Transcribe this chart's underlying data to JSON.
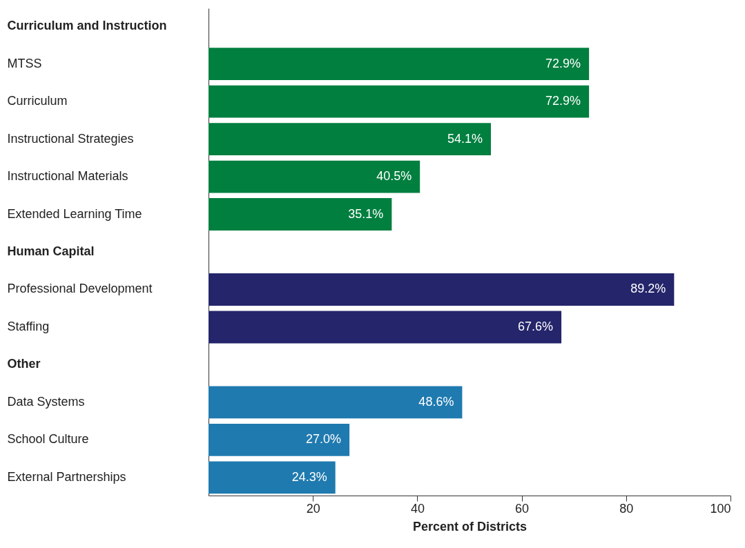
{
  "chart_data": {
    "type": "bar",
    "orientation": "horizontal",
    "categories": [
      "Curriculum and Instruction",
      "MTSS",
      "Curriculum",
      "Instructional Strategies",
      "Instructional Materials",
      "Extended Learning Time",
      "Human Capital",
      "Professional Development",
      "Staffing",
      "Other",
      "Data Systems",
      "School Culture",
      "External Partnerships"
    ],
    "values": [
      null,
      72.9,
      72.9,
      54.1,
      40.5,
      35.1,
      null,
      89.2,
      67.6,
      null,
      48.6,
      27.0,
      24.3
    ],
    "colors": [
      null,
      "#007f3f",
      "#007f3f",
      "#007f3f",
      "#007f3f",
      "#007f3f",
      null,
      "#25256b",
      "#25256b",
      null,
      "#1f7aaf",
      "#1f7aaf",
      "#1f7aaf"
    ],
    "value_labels": [
      null,
      "72.9%",
      "72.9%",
      "54.1%",
      "40.5%",
      "35.1%",
      null,
      "89.2%",
      "67.6%",
      null,
      "48.6%",
      "27.0%",
      "24.3%"
    ],
    "xlim": [
      0,
      100
    ],
    "xticks": [
      20,
      40,
      60,
      80,
      100
    ],
    "xlabel": "Percent of Districts",
    "grid": false
  }
}
